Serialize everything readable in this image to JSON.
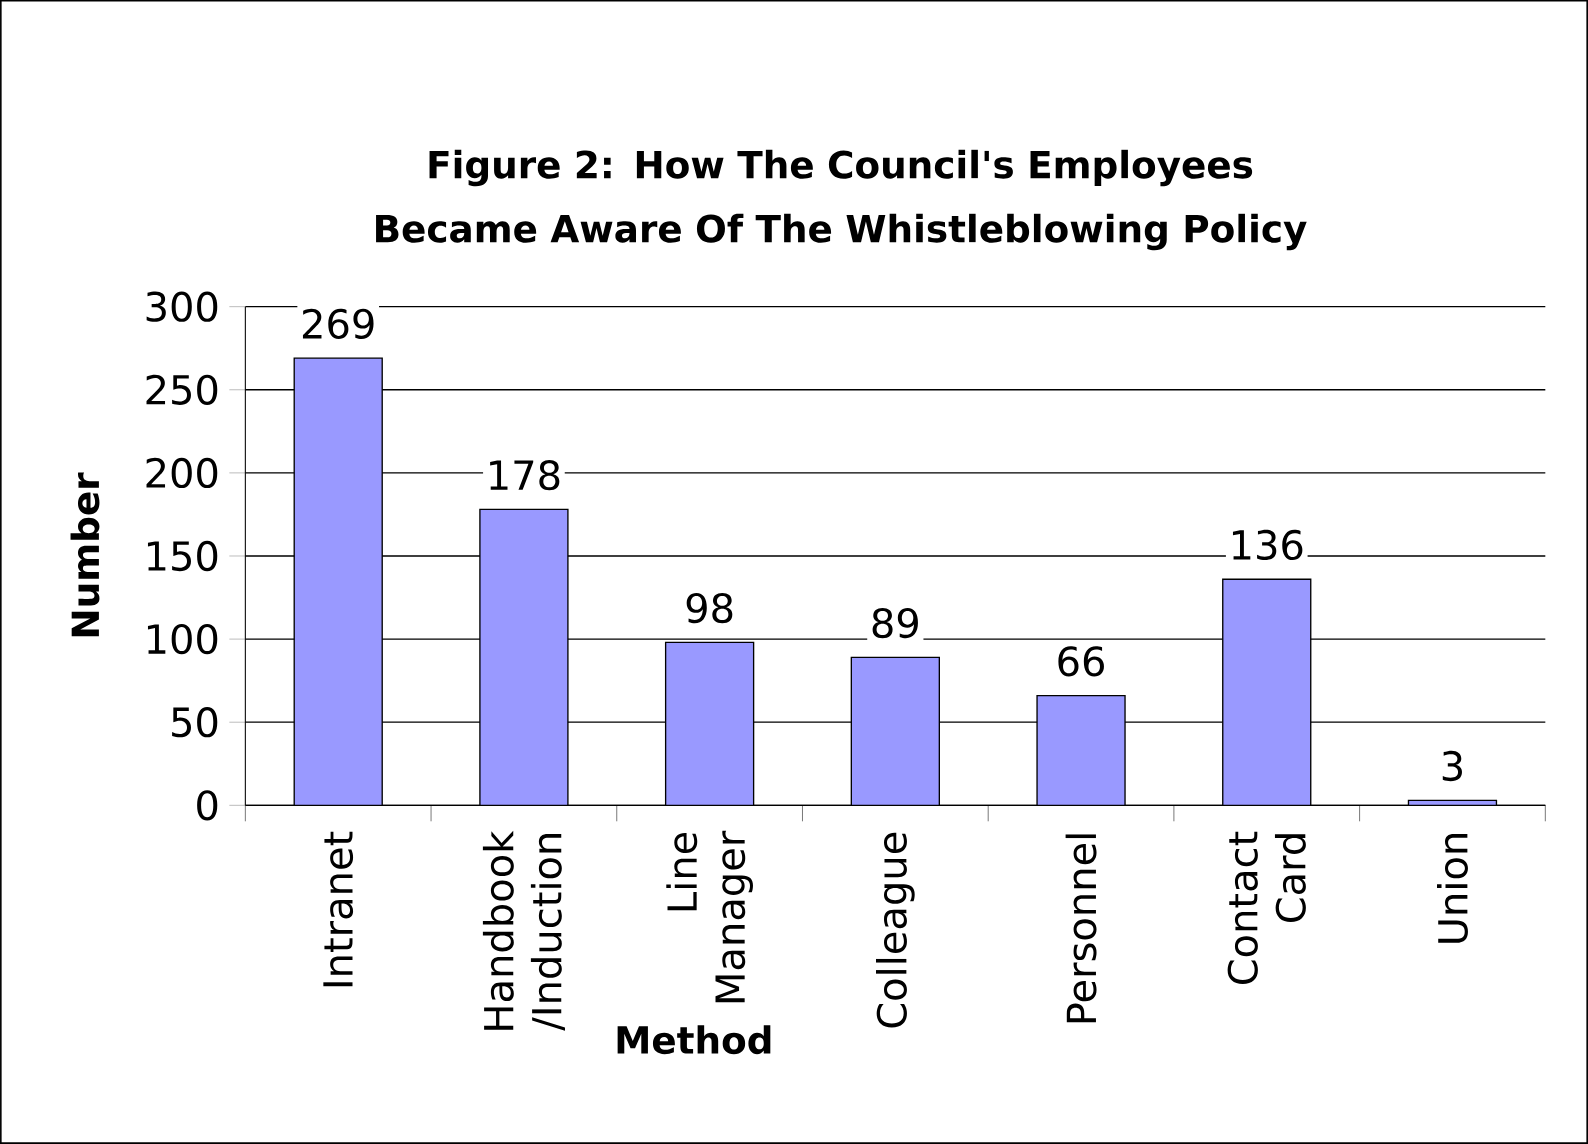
{
  "chart_data": {
    "type": "bar",
    "title": "Figure 2: How The Council's Employees Became Aware Of The Whistleblowing Policy",
    "xlabel": "Method",
    "ylabel": "Number",
    "categories": [
      "Intranet",
      "Handbook /Induction",
      "Line Manager",
      "Colleague",
      "Personnel",
      "Contact Card",
      "Union"
    ],
    "values": [
      269,
      178,
      98,
      89,
      66,
      136,
      3
    ],
    "color": "#9999ff",
    "ylim": [
      0,
      300
    ],
    "yticks": [
      0,
      50,
      100,
      150,
      200,
      250,
      300
    ],
    "grid": "y",
    "data_labels": true
  }
}
